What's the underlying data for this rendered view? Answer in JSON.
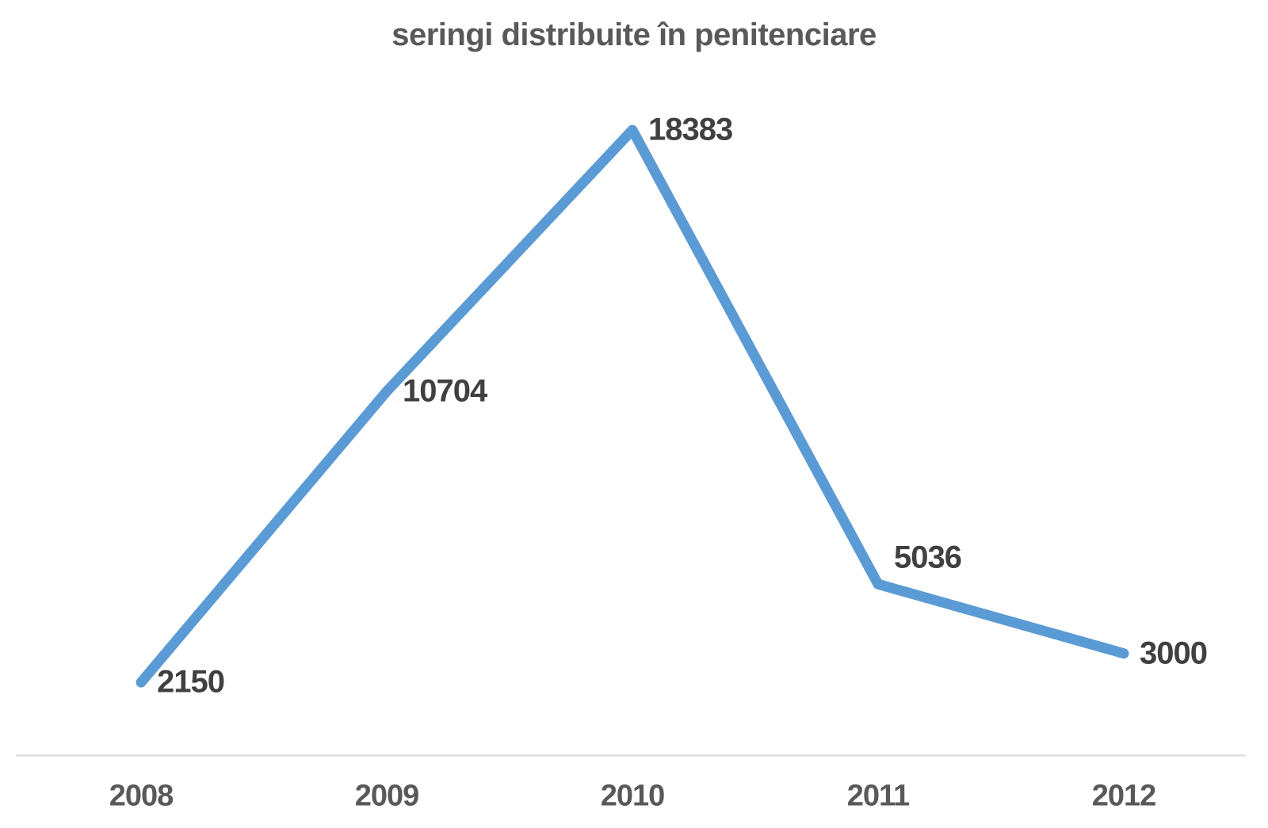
{
  "title": "seringi distribuite în penitenciare",
  "colors": {
    "line": "#5b9bd5",
    "data_label": "#404040",
    "axis_label": "#595959",
    "title": "#595959",
    "axis_line": "#d9d9d9",
    "background": "#ffffff"
  },
  "chart_data": {
    "type": "line",
    "title": "seringi distribuite în penitenciare",
    "categories": [
      "2008",
      "2009",
      "2010",
      "2011",
      "2012"
    ],
    "series": [
      {
        "name": "seringi distribuite în penitenciare",
        "values": [
          2150,
          10704,
          18383,
          5036,
          3000
        ]
      }
    ],
    "data_labels": [
      "2150",
      "10704",
      "18383",
      "5036",
      "3000"
    ],
    "xlabel": "",
    "ylabel": "",
    "ylim": [
      0,
      20000
    ],
    "grid": false,
    "legend": false,
    "markers": false,
    "line_style": "solid"
  }
}
